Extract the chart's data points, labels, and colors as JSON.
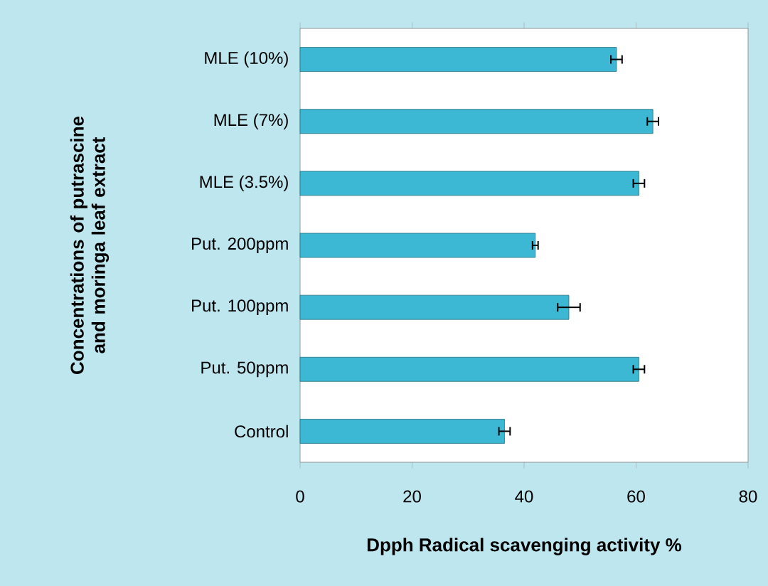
{
  "chart_data": {
    "type": "bar",
    "orientation": "horizontal",
    "xlabel": "Dpph Radical  scavenging  activity %",
    "ylabel": "Concentrations of putrascine and moringa leaf extract",
    "categories": [
      "MLE (10%)",
      "MLE (7%)",
      "MLE (3.5%)",
      "Put. 200ppm",
      "Put. 100ppm",
      "Put. 50ppm",
      "Control"
    ],
    "values": [
      56.5,
      63,
      60.5,
      42,
      48,
      60.5,
      36.5
    ],
    "errors": [
      1,
      1,
      1,
      0.5,
      2,
      1,
      1
    ],
    "color": "#3cb8d4",
    "xlim": [
      0,
      80
    ],
    "xticks": [
      0,
      20,
      40,
      60,
      80
    ],
    "grid": false
  }
}
